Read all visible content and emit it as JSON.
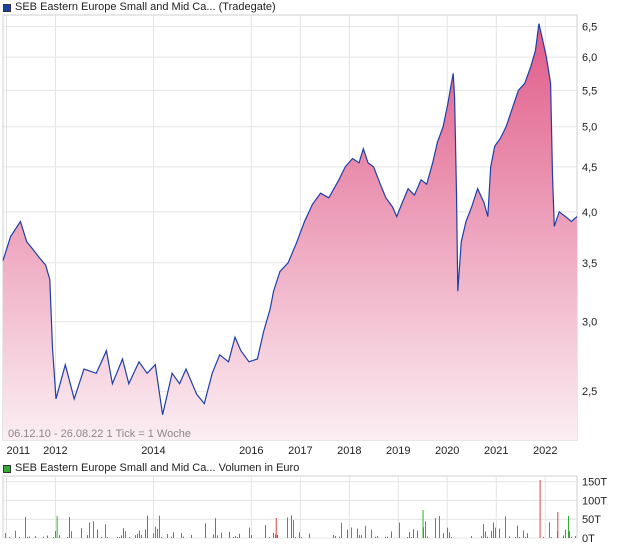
{
  "colors": {
    "price_line": "#1f3fa8",
    "area_top": "#e05a88",
    "area_bottom": "#fbeef3",
    "grid": "#e4e4e4",
    "volume_bar": "#d44",
    "volume_bar_alt": "#3a3",
    "legend_top_swatch": "#1f3fa8",
    "legend_bottom_swatch": "#3a3"
  },
  "legend_top": {
    "label": "SEB Eastern Europe Small and Mid Ca... (Tradegate)"
  },
  "legend_bottom": {
    "label": "SEB Eastern Europe Small and Mid Ca... Volumen in Euro"
  },
  "footer_note": "06.12.10 - 26.08.22   1 Tick = 1 Woche",
  "chart_data": [
    {
      "type": "area",
      "scale": "log",
      "ylim": [
        2.2,
        6.7
      ],
      "x_ticks": [
        "2011",
        "2012",
        "2014",
        "2016",
        "2017",
        "2018",
        "2019",
        "2020",
        "2021",
        "2022"
      ],
      "x_tick_dates": [
        "2011-01-01",
        "2012-01-01",
        "2014-01-01",
        "2016-01-01",
        "2017-01-01",
        "2018-01-01",
        "2019-01-01",
        "2020-01-01",
        "2021-01-01",
        "2022-01-01"
      ],
      "y_ticks": [
        "6,5",
        "6,0",
        "5,5",
        "5,0",
        "4,5",
        "4,0",
        "3,5",
        "3,0",
        "2,5"
      ],
      "y_tick_values": [
        6.5,
        6.0,
        5.5,
        5.0,
        4.5,
        4.0,
        3.5,
        3.0,
        2.5
      ],
      "x_range": [
        "2010-12-06",
        "2022-08-26"
      ],
      "points": [
        [
          "2010-12-06",
          3.52
        ],
        [
          "2011-02-01",
          3.75
        ],
        [
          "2011-04-15",
          3.9
        ],
        [
          "2011-06-01",
          3.7
        ],
        [
          "2011-07-20",
          3.62
        ],
        [
          "2011-09-01",
          3.55
        ],
        [
          "2011-10-20",
          3.48
        ],
        [
          "2011-11-20",
          3.35
        ],
        [
          "2011-12-10",
          2.8
        ],
        [
          "2012-01-05",
          2.45
        ],
        [
          "2012-03-15",
          2.68
        ],
        [
          "2012-05-20",
          2.45
        ],
        [
          "2012-08-01",
          2.65
        ],
        [
          "2012-11-01",
          2.62
        ],
        [
          "2013-01-15",
          2.78
        ],
        [
          "2013-03-01",
          2.55
        ],
        [
          "2013-05-15",
          2.72
        ],
        [
          "2013-07-01",
          2.55
        ],
        [
          "2013-09-15",
          2.7
        ],
        [
          "2013-11-15",
          2.62
        ],
        [
          "2014-01-15",
          2.68
        ],
        [
          "2014-03-10",
          2.35
        ],
        [
          "2014-05-20",
          2.62
        ],
        [
          "2014-07-15",
          2.55
        ],
        [
          "2014-09-01",
          2.65
        ],
        [
          "2014-11-20",
          2.48
        ],
        [
          "2015-01-15",
          2.42
        ],
        [
          "2015-03-15",
          2.62
        ],
        [
          "2015-05-10",
          2.75
        ],
        [
          "2015-07-15",
          2.7
        ],
        [
          "2015-09-01",
          2.88
        ],
        [
          "2015-10-15",
          2.78
        ],
        [
          "2015-12-15",
          2.7
        ],
        [
          "2016-02-15",
          2.72
        ],
        [
          "2016-04-01",
          2.92
        ],
        [
          "2016-05-20",
          3.1
        ],
        [
          "2016-06-15",
          3.25
        ],
        [
          "2016-08-01",
          3.42
        ],
        [
          "2016-10-01",
          3.5
        ],
        [
          "2016-12-01",
          3.68
        ],
        [
          "2017-02-01",
          3.9
        ],
        [
          "2017-04-01",
          4.08
        ],
        [
          "2017-06-01",
          4.2
        ],
        [
          "2017-08-01",
          4.15
        ],
        [
          "2017-10-15",
          4.35
        ],
        [
          "2017-12-01",
          4.5
        ],
        [
          "2018-01-25",
          4.6
        ],
        [
          "2018-03-15",
          4.55
        ],
        [
          "2018-04-15",
          4.72
        ],
        [
          "2018-05-20",
          4.55
        ],
        [
          "2018-07-01",
          4.5
        ],
        [
          "2018-08-20",
          4.3
        ],
        [
          "2018-10-01",
          4.15
        ],
        [
          "2018-11-20",
          4.05
        ],
        [
          "2018-12-20",
          3.95
        ],
        [
          "2019-02-01",
          4.1
        ],
        [
          "2019-03-15",
          4.25
        ],
        [
          "2019-05-01",
          4.18
        ],
        [
          "2019-06-20",
          4.35
        ],
        [
          "2019-08-01",
          4.3
        ],
        [
          "2019-09-15",
          4.55
        ],
        [
          "2019-10-20",
          4.8
        ],
        [
          "2019-12-01",
          5.0
        ],
        [
          "2020-01-05",
          5.3
        ],
        [
          "2020-02-15",
          5.75
        ],
        [
          "2020-02-25",
          5.4
        ],
        [
          "2020-03-10",
          4.2
        ],
        [
          "2020-03-20",
          3.25
        ],
        [
          "2020-04-15",
          3.7
        ],
        [
          "2020-05-20",
          3.9
        ],
        [
          "2020-07-01",
          4.05
        ],
        [
          "2020-08-15",
          4.25
        ],
        [
          "2020-10-01",
          4.1
        ],
        [
          "2020-10-30",
          3.95
        ],
        [
          "2020-11-20",
          4.5
        ],
        [
          "2020-12-20",
          4.75
        ],
        [
          "2021-02-01",
          4.85
        ],
        [
          "2021-03-15",
          5.0
        ],
        [
          "2021-05-01",
          5.25
        ],
        [
          "2021-06-15",
          5.5
        ],
        [
          "2021-08-01",
          5.6
        ],
        [
          "2021-09-15",
          5.85
        ],
        [
          "2021-10-20",
          6.1
        ],
        [
          "2021-11-15",
          6.55
        ],
        [
          "2021-12-10",
          6.3
        ],
        [
          "2022-01-10",
          6.0
        ],
        [
          "2022-02-10",
          5.6
        ],
        [
          "2022-02-24",
          4.4
        ],
        [
          "2022-03-10",
          3.85
        ],
        [
          "2022-04-15",
          4.0
        ],
        [
          "2022-06-01",
          3.95
        ],
        [
          "2022-07-15",
          3.9
        ],
        [
          "2022-08-26",
          3.95
        ]
      ]
    },
    {
      "type": "bar",
      "name": "Volumen in Euro",
      "y_ticks": [
        "150T",
        "100T",
        "50T",
        "0T"
      ],
      "y_tick_values": [
        150,
        100,
        50,
        0
      ],
      "ylim": [
        0,
        165
      ]
    }
  ]
}
